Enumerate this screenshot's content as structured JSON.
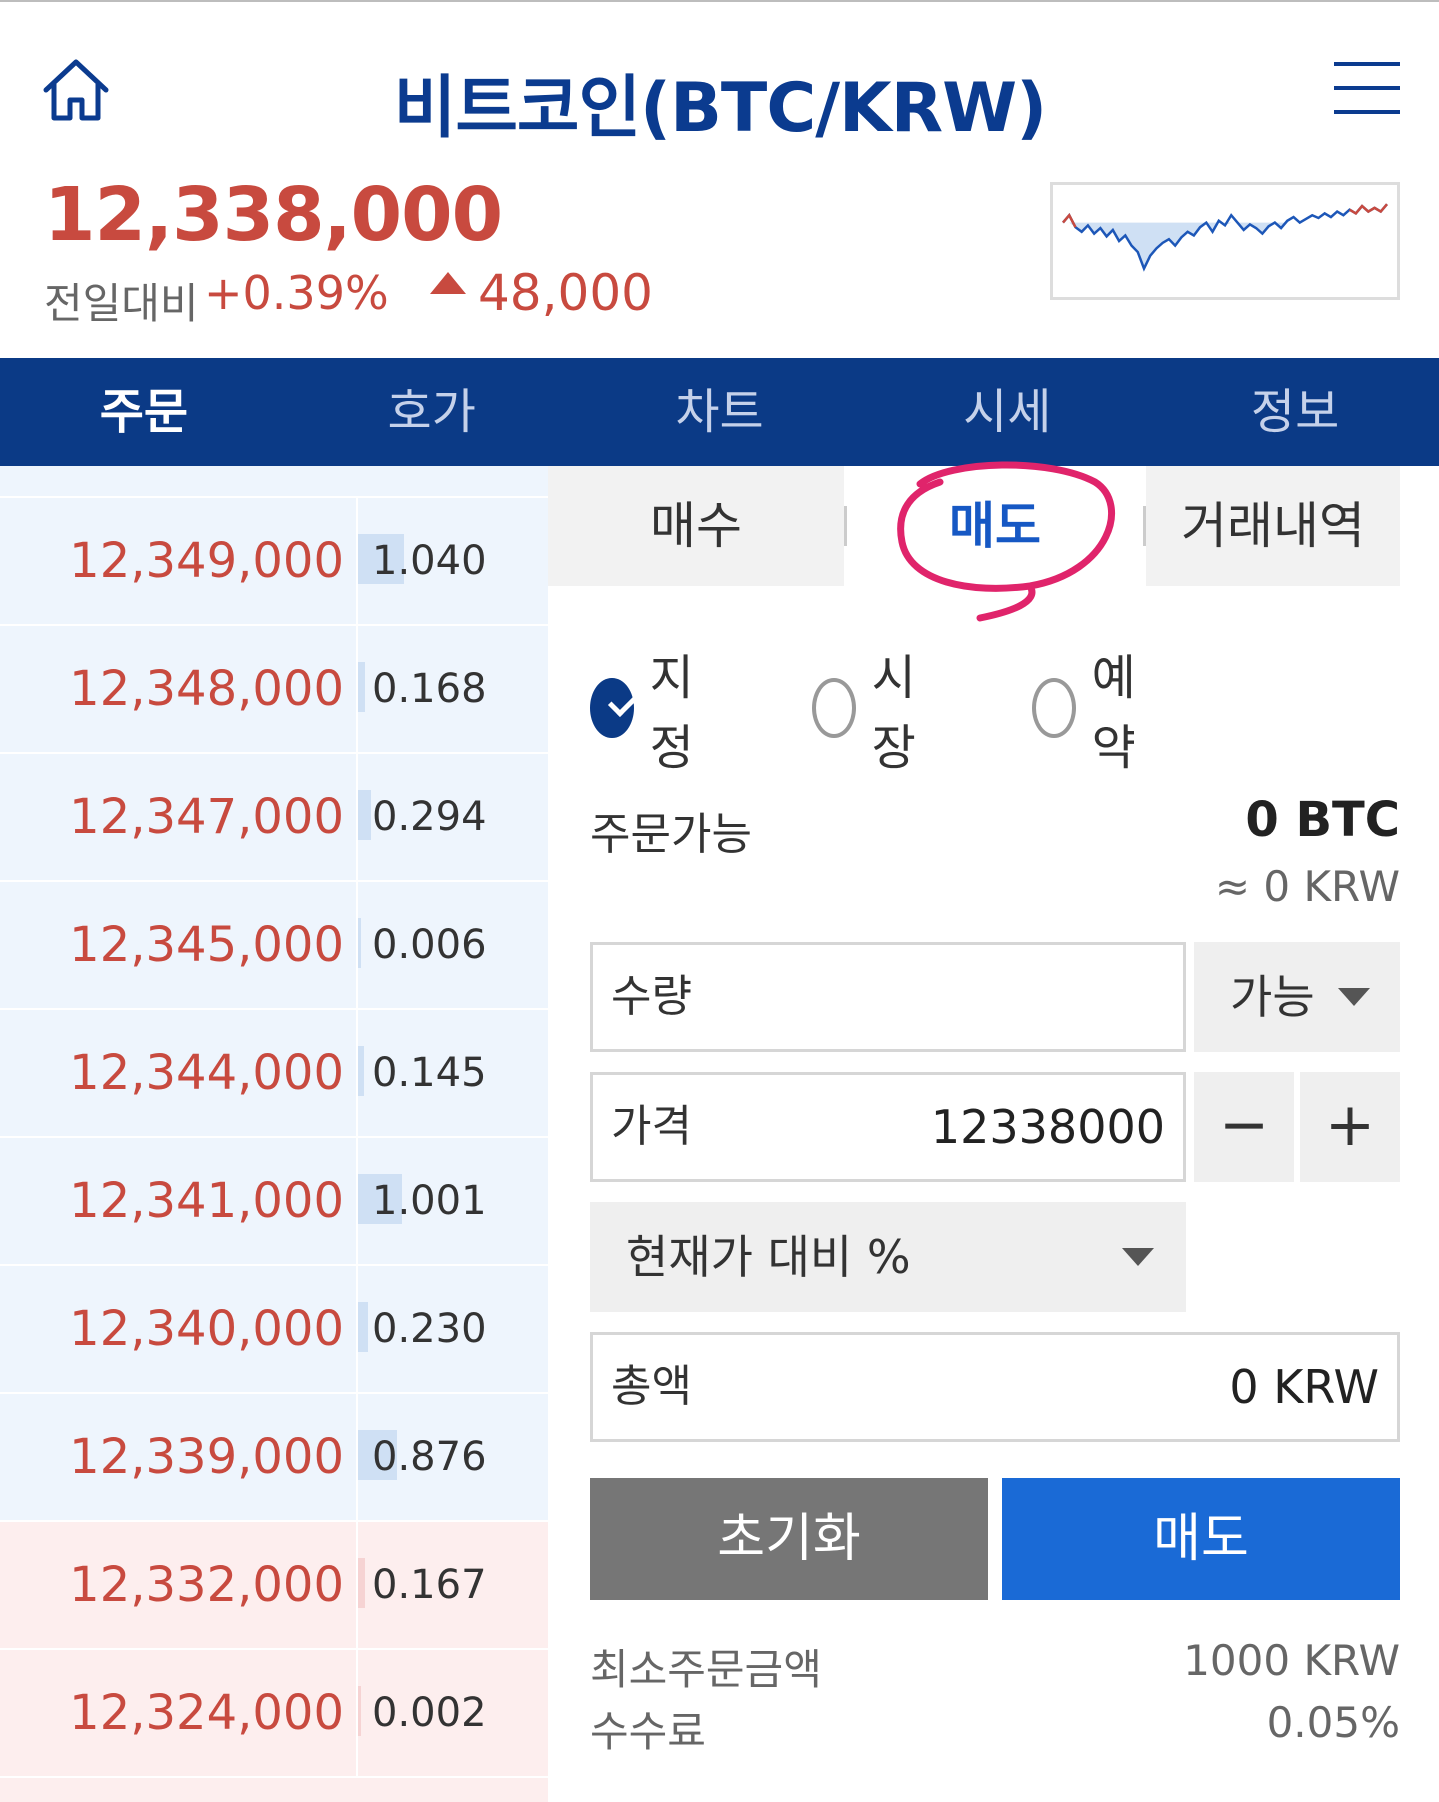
{
  "header": {
    "title": "비트코인(BTC/KRW)",
    "home_icon": "home-icon",
    "menu_icon": "hamburger-menu-icon"
  },
  "ticker": {
    "price": "12,338,000",
    "change_label": "전일대비",
    "change_pct": "+0.39%",
    "change_amount": "48,000",
    "up_color": "#c84a3f"
  },
  "nav": {
    "tabs": [
      {
        "label": "주문",
        "active": true
      },
      {
        "label": "호가",
        "active": false
      },
      {
        "label": "차트",
        "active": false
      },
      {
        "label": "시세",
        "active": false
      },
      {
        "label": "정보",
        "active": false
      }
    ]
  },
  "orderbook": {
    "asks": [
      {
        "price": "12,349,000",
        "qty": "1.040",
        "qty_value": 1.04
      },
      {
        "price": "12,348,000",
        "qty": "0.168",
        "qty_value": 0.168
      },
      {
        "price": "12,347,000",
        "qty": "0.294",
        "qty_value": 0.294
      },
      {
        "price": "12,345,000",
        "qty": "0.006",
        "qty_value": 0.006
      },
      {
        "price": "12,344,000",
        "qty": "0.145",
        "qty_value": 0.145
      },
      {
        "price": "12,341,000",
        "qty": "1.001",
        "qty_value": 1.001
      },
      {
        "price": "12,340,000",
        "qty": "0.230",
        "qty_value": 0.23
      },
      {
        "price": "12,339,000",
        "qty": "0.876",
        "qty_value": 0.876
      }
    ],
    "bids": [
      {
        "price": "12,332,000",
        "qty": "0.167",
        "qty_value": 0.167
      },
      {
        "price": "12,324,000",
        "qty": "0.002",
        "qty_value": 0.002
      }
    ],
    "ask_bg": "#eef5fd",
    "bid_bg": "#fdeeee",
    "ask_bar": "#cfe0f4",
    "bid_bar": "#f6d3d3"
  },
  "order_tabs": {
    "buy": "매수",
    "sell": "매도",
    "history": "거래내역",
    "active": "sell"
  },
  "order_type": {
    "options": [
      {
        "label": "지정",
        "checked": true
      },
      {
        "label": "시장",
        "checked": false
      },
      {
        "label": "예약",
        "checked": false
      }
    ]
  },
  "available": {
    "label": "주문가능",
    "btc": "0 BTC",
    "krw": "≈ 0 KRW"
  },
  "form": {
    "quantity_label": "수량",
    "quantity_dropdown": "가능",
    "price_label": "가격",
    "price_value": "12338000",
    "minus": "−",
    "plus": "+",
    "percent_dropdown": "현재가 대비 %",
    "total_label": "총액",
    "total_value": "0 KRW"
  },
  "buttons": {
    "reset": "초기화",
    "sell": "매도"
  },
  "info": {
    "min_order_label": "최소주문금액",
    "min_order_value": "1000 KRW",
    "fee_label": "수수료",
    "fee_value": "0.05%"
  },
  "mini_chart": {
    "series": [
      0.3,
      0.22,
      0.35,
      0.4,
      0.33,
      0.42,
      0.36,
      0.45,
      0.38,
      0.5,
      0.44,
      0.55,
      0.62,
      0.8,
      0.66,
      0.58,
      0.52,
      0.48,
      0.55,
      0.46,
      0.4,
      0.44,
      0.35,
      0.3,
      0.4,
      0.28,
      0.33,
      0.22,
      0.3,
      0.38,
      0.32,
      0.36,
      0.42,
      0.34,
      0.3,
      0.36,
      0.28,
      0.24,
      0.3,
      0.26,
      0.22,
      0.25,
      0.2,
      0.24,
      0.18,
      0.22,
      0.16,
      0.2,
      0.12,
      0.18,
      0.14,
      0.18,
      0.1
    ],
    "line_color": "#1d57b8",
    "up_color": "#c84a3f",
    "fill_color": "#cfe0f4"
  }
}
